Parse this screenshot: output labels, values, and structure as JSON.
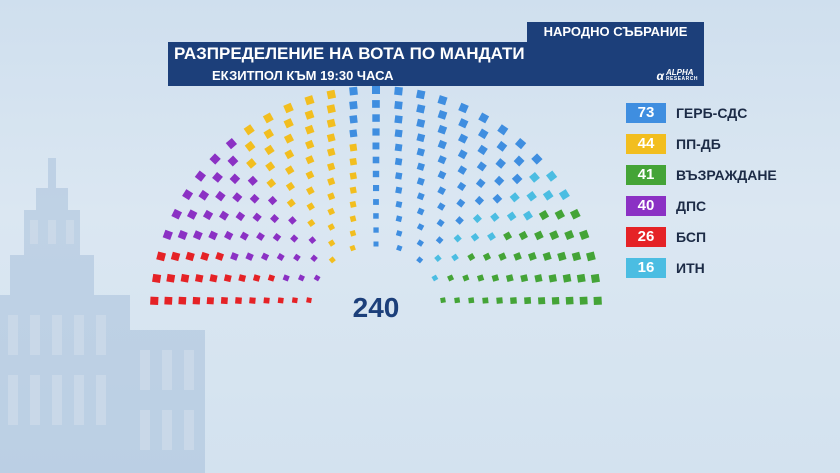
{
  "header": {
    "assembly_label": "НАРОДНО СЪБРАНИЕ",
    "title": "РАЗПРЕДЕЛЕНИЕ НА ВОТА ПО МАНДАТИ",
    "subtitle": "ЕКЗИТПОЛ КЪМ 19:30 ЧАСА",
    "logo_name": "ALPHA",
    "logo_sub": "RESEARCH"
  },
  "flag_colors": [
    "#ffffff",
    "#00966e",
    "#d62612"
  ],
  "chart_data": {
    "type": "parliament",
    "title": "РАЗПРЕДЕЛЕНИЕ НА ВОТА ПО МАНДАТИ",
    "subtitle": "ЕКЗИТПОЛ КЪМ 19:30 ЧАСА",
    "total_seats": 240,
    "total_label": "240",
    "series": [
      {
        "name": "ГЕРБ-СДС",
        "value": 73,
        "color": "#3f8ee0"
      },
      {
        "name": "ПП-ДБ",
        "value": 44,
        "color": "#f2be1f"
      },
      {
        "name": "ВЪЗРАЖДАНЕ",
        "value": 41,
        "color": "#44a437"
      },
      {
        "name": "ДПС",
        "value": 40,
        "color": "#8b31c4"
      },
      {
        "name": "БСП",
        "value": 26,
        "color": "#e52226"
      },
      {
        "name": "ИТН",
        "value": 16,
        "color": "#4bbde2"
      }
    ],
    "seat_order": [
      "БСП",
      "ДПС",
      "ПП-ДБ",
      "ГЕРБ-СДС",
      "ИТН",
      "ВЪЗРАЖДАНЕ"
    ],
    "legend_position": "right"
  }
}
